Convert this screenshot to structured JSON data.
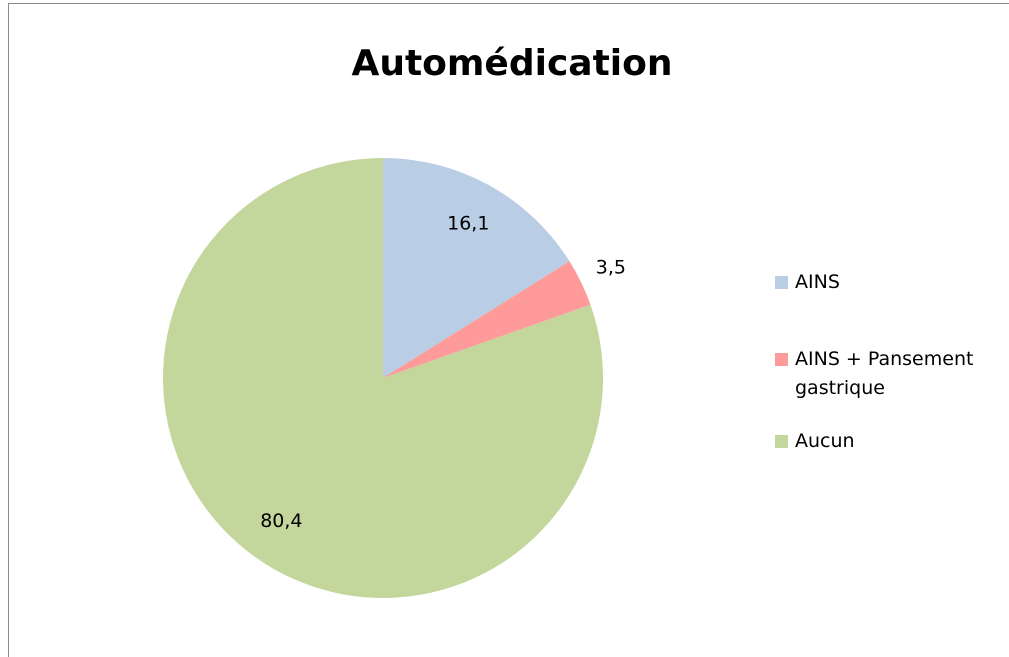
{
  "chart_data": {
    "type": "pie",
    "title": "Automédication",
    "categories": [
      "AINS",
      "AINS + Pansement gastrique",
      "Aucun"
    ],
    "values": [
      16.1,
      3.5,
      80.4
    ],
    "value_labels": [
      "16,1",
      "3,5",
      "80,4"
    ],
    "colors": [
      "#b9cde5",
      "#ff9a9a",
      "#c3d69b"
    ]
  }
}
